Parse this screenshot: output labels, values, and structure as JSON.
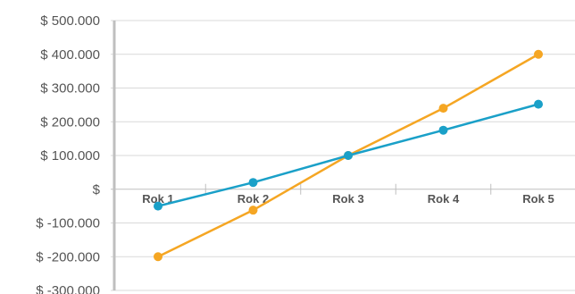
{
  "chart_data": {
    "type": "line",
    "title": "",
    "xlabel": "",
    "ylabel": "",
    "categories": [
      "Rok 1",
      "Rok 2",
      "Rok 3",
      "Rok 4",
      "Rok 5"
    ],
    "ylim": [
      -300000,
      500000
    ],
    "y_ticks": [
      500000,
      400000,
      300000,
      200000,
      100000,
      0,
      -100000,
      -200000,
      -300000
    ],
    "y_tick_labels": [
      "$ 500.000",
      "$ 400.000",
      "$ 300.000",
      "$ 200.000",
      "$ 100.000",
      "$",
      "$ -100.000",
      "$ -200.000",
      "$ -300.000"
    ],
    "grid": true,
    "legend": "none",
    "series": [
      {
        "values": [
          -50000,
          20000,
          100000,
          175000,
          252000
        ],
        "color": "#1aa0c8"
      },
      {
        "values": [
          -200000,
          -62000,
          100000,
          240000,
          400000
        ],
        "color": "#f5a623"
      }
    ],
    "colors": {
      "grid": "#d9d9d9",
      "axis": "#bfbfbf",
      "text": "#555555"
    }
  }
}
